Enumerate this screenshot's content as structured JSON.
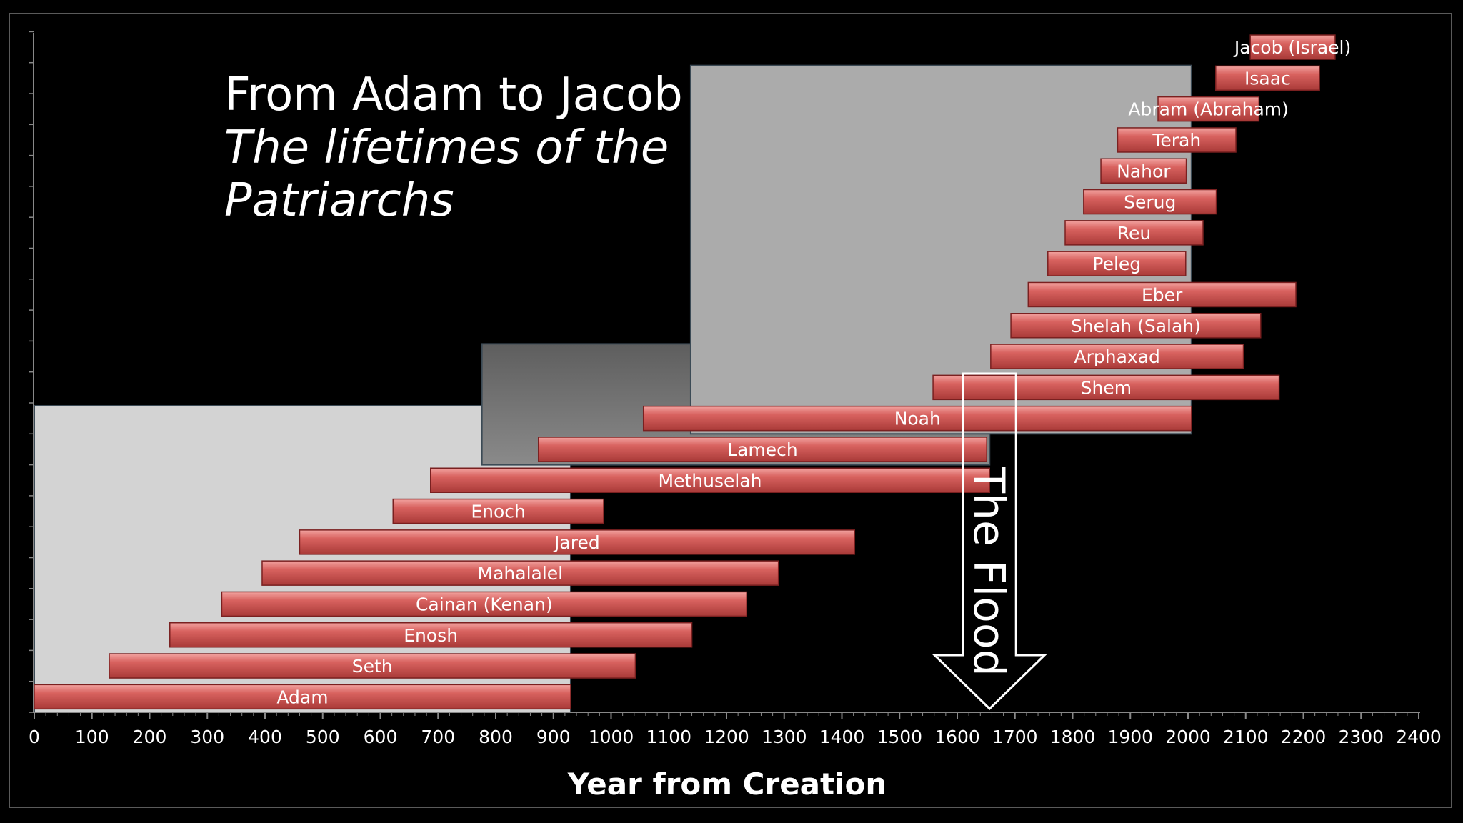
{
  "title": "From Adam to Jacob",
  "subtitle": "The lifetimes of the Patriarchs",
  "chart_data": {
    "type": "bar",
    "orientation": "horizontal-timeline",
    "xlabel": "Year from Creation",
    "ylabel": "",
    "xlim": [
      0,
      2400
    ],
    "xticks": [
      0,
      100,
      200,
      300,
      400,
      500,
      600,
      700,
      800,
      900,
      1000,
      1100,
      1200,
      1300,
      1400,
      1500,
      1600,
      1700,
      1800,
      1900,
      2000,
      2100,
      2200,
      2300,
      2400
    ],
    "bar_color": "#c8504e",
    "series": [
      {
        "name": "Adam",
        "start": 0,
        "end": 930
      },
      {
        "name": "Seth",
        "start": 130,
        "end": 1042
      },
      {
        "name": "Enosh",
        "start": 235,
        "end": 1140
      },
      {
        "name": "Cainan (Kenan)",
        "start": 325,
        "end": 1235
      },
      {
        "name": "Mahalalel",
        "start": 395,
        "end": 1290
      },
      {
        "name": "Jared",
        "start": 460,
        "end": 1422
      },
      {
        "name": "Enoch",
        "start": 622,
        "end": 987
      },
      {
        "name": "Methuselah",
        "start": 687,
        "end": 1656
      },
      {
        "name": "Lamech",
        "start": 874,
        "end": 1651
      },
      {
        "name": "Noah",
        "start": 1056,
        "end": 2006
      },
      {
        "name": "Shem",
        "start": 1558,
        "end": 2158
      },
      {
        "name": "Arphaxad",
        "start": 1658,
        "end": 2096
      },
      {
        "name": "Shelah (Salah)",
        "start": 1693,
        "end": 2126
      },
      {
        "name": "Eber",
        "start": 1723,
        "end": 2187
      },
      {
        "name": "Peleg",
        "start": 1757,
        "end": 1996
      },
      {
        "name": "Reu",
        "start": 1787,
        "end": 2026
      },
      {
        "name": "Serug",
        "start": 1819,
        "end": 2049
      },
      {
        "name": "Nahor",
        "start": 1849,
        "end": 1997
      },
      {
        "name": "Terah",
        "start": 1878,
        "end": 2083
      },
      {
        "name": "Abram (Abraham)",
        "start": 1948,
        "end": 2123
      },
      {
        "name": "Isaac",
        "start": 2048,
        "end": 2228
      },
      {
        "name": "Jacob (Israel)",
        "start": 2108,
        "end": 2255
      }
    ],
    "regions": [
      {
        "name": "overlap-adam",
        "start": 0,
        "end": 930,
        "rows": [
          0,
          9
        ],
        "color": "#d3d3d3"
      },
      {
        "name": "overlap-methuselah",
        "start": 776,
        "end": 1656,
        "rows": [
          8,
          11
        ],
        "color": "#7a7a7a"
      },
      {
        "name": "overlap-noah",
        "start": 1138,
        "end": 2006,
        "rows": [
          9,
          20
        ],
        "color": "#ababab"
      }
    ],
    "annotations": [
      {
        "text": "The Flood",
        "x": 1656,
        "type": "arrow-down"
      }
    ]
  }
}
